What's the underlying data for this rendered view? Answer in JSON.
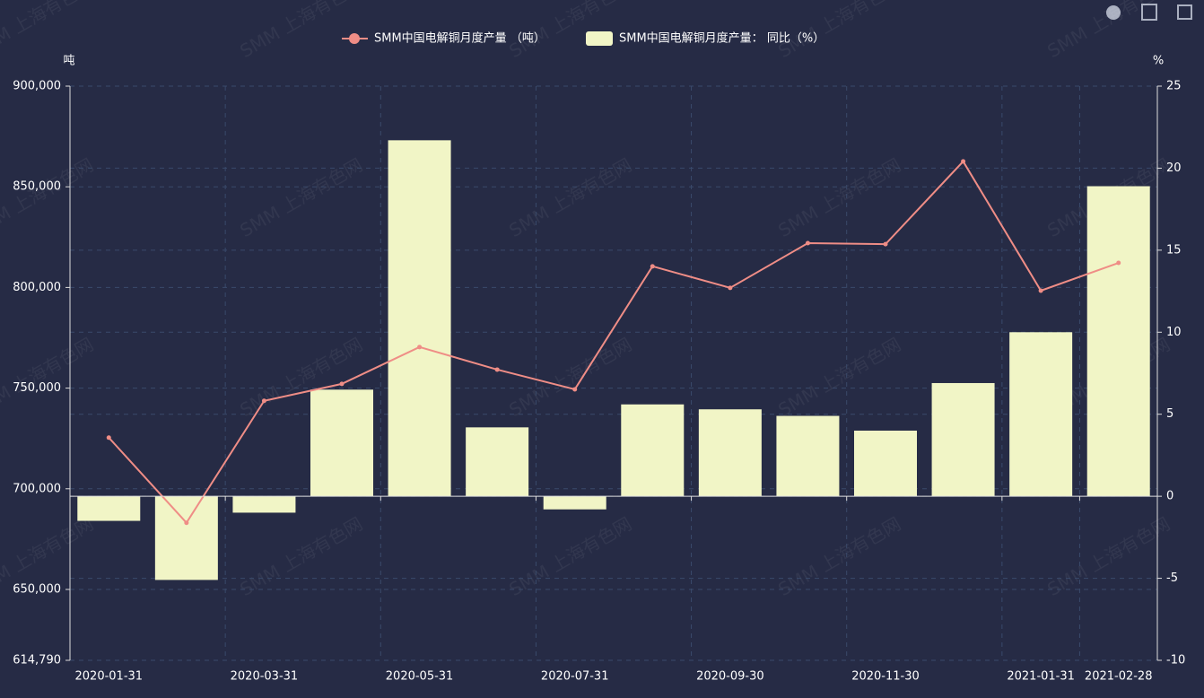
{
  "chart_data": {
    "type": "bar-line",
    "watermark": "SMM 上海有色网",
    "y_axis_label": "吨",
    "y2_axis_label": "%",
    "categories": [
      "2020-01-31",
      null,
      "2020-03-31",
      null,
      "2020-05-31",
      null,
      "2020-07-31",
      null,
      "2020-09-30",
      null,
      "2020-11-30",
      null,
      "2021-01-31",
      "2021-02-28"
    ],
    "series": [
      {
        "name": "SMM中国电解铜月度产量 （吨）",
        "type": "line",
        "color": "#ef8d86",
        "values": [
          725400,
          683100,
          743700,
          752100,
          770400,
          759200,
          749400,
          810500,
          799800,
          822000,
          821500,
          862600,
          798400,
          812200
        ]
      },
      {
        "name": "SMM中国电解铜月度产量： 同比（%）",
        "type": "bar",
        "axis": "y2",
        "color": "#f1f5c6",
        "values": [
          -1.5,
          -5.1,
          -1.0,
          6.5,
          21.7,
          4.2,
          -0.8,
          5.6,
          5.3,
          4.9,
          4.0,
          6.9,
          10.0,
          18.9
        ]
      }
    ],
    "ylim": [
      614790,
      900000
    ],
    "yticks": [
      {
        "value": 614790,
        "label": "614,790"
      },
      {
        "value": 650000,
        "label": "650,000"
      },
      {
        "value": 700000,
        "label": "700,000"
      },
      {
        "value": 750000,
        "label": "750,000"
      },
      {
        "value": 800000,
        "label": "800,000"
      },
      {
        "value": 850000,
        "label": "850,000"
      },
      {
        "value": 900000,
        "label": "900,000"
      }
    ],
    "y2lim": [
      -10,
      25
    ],
    "y2ticks": [
      -10,
      -5,
      0,
      5,
      10,
      15,
      20,
      25
    ],
    "grid": true
  }
}
